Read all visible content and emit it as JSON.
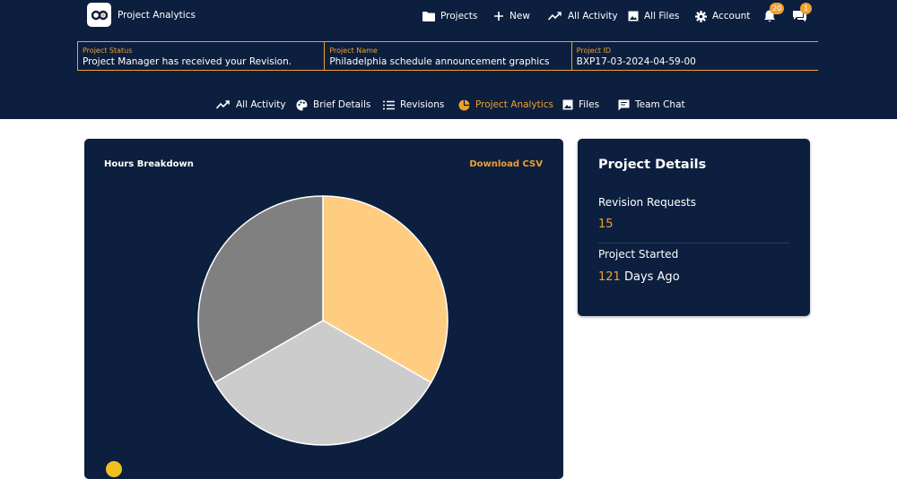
{
  "app": {
    "title": "Project Analytics"
  },
  "topnav": {
    "projects": "Projects",
    "new": "New",
    "all_activity": "All Activity",
    "all_files": "All Files",
    "account": "Account",
    "notifications_count": "20",
    "messages_count": "1"
  },
  "info_bar": {
    "status_label": "Project Status",
    "status_value": "Project Manager has received your Revision.",
    "name_label": "Project Name",
    "name_value": "Philadelphia schedule announcement graphics",
    "id_label": "Project ID",
    "id_value": "BXP17-03-2024-04-59-00"
  },
  "tabs": [
    {
      "label": "All Activity",
      "icon": "trend-icon"
    },
    {
      "label": "Brief Details",
      "icon": "palette-icon"
    },
    {
      "label": "Revisions",
      "icon": "list-icon"
    },
    {
      "label": "Project Analytics",
      "icon": "pie-icon",
      "active": true
    },
    {
      "label": "Files",
      "icon": "image-icon"
    },
    {
      "label": "Team Chat",
      "icon": "chat-icon"
    }
  ],
  "hours": {
    "title": "Hours Breakdown",
    "download_label": "Download CSV"
  },
  "chart_data": {
    "type": "pie",
    "values": [
      33.3,
      33.4,
      33.3
    ],
    "colors": [
      "#ffcd82",
      "#cccccc",
      "#808080"
    ],
    "legend": "bottom"
  },
  "details": {
    "title": "Project Details",
    "revision_label": "Revision Requests",
    "revision_value": "15",
    "started_label": "Project Started",
    "started_number": "121",
    "started_suffix": "Days Ago"
  },
  "colors": {
    "navy": "#0c1f3f",
    "accent": "#f0a030"
  }
}
